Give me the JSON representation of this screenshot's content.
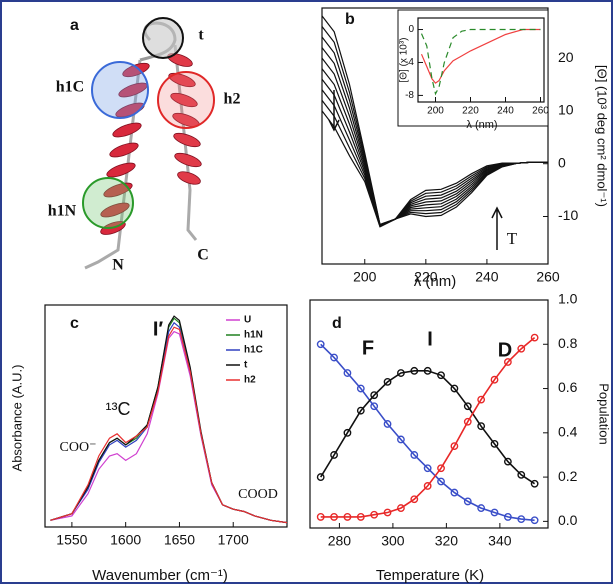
{
  "chart_data": [
    {
      "type": "structure",
      "panel": "a",
      "labels": [
        "t",
        "h1C",
        "h2",
        "h1N",
        "N",
        "C"
      ]
    },
    {
      "type": "line",
      "panel": "b",
      "xlabel": "λ (nm)",
      "ylabel": "[Θ] (10³ deg cm² dmol⁻¹)",
      "annotations": [
        "T"
      ],
      "x": [
        186,
        190,
        195,
        200,
        205,
        210,
        215,
        220,
        225,
        230,
        235,
        240,
        245,
        250,
        255,
        260
      ],
      "series": [
        {
          "color": "#111111",
          "values": [
            28,
            25,
            15,
            2,
            -11.5,
            -10.5,
            -9.5,
            -10,
            -9.8,
            -8.2,
            -5.5,
            -2.2,
            -0.6,
            0.1,
            0.3,
            0.3
          ]
        },
        {
          "color": "#111111",
          "values": [
            26,
            23,
            13.5,
            1.4,
            -11.55,
            -10.5,
            -9.2,
            -9.45,
            -9.25,
            -7.7,
            -5.1,
            -2,
            -0.52,
            0.1,
            0.3,
            0.3
          ]
        },
        {
          "color": "#111111",
          "values": [
            24,
            21,
            12,
            0.8,
            -11.6,
            -10.5,
            -8.9,
            -8.9,
            -8.7,
            -7.2,
            -4.7,
            -1.8,
            -0.44,
            0.1,
            0.3,
            0.3
          ]
        },
        {
          "color": "#111111",
          "values": [
            22,
            19,
            10.5,
            0.2,
            -11.65,
            -10.5,
            -8.6,
            -8.35,
            -8.15,
            -6.7,
            -4.3,
            -1.6,
            -0.36,
            0.1,
            0.3,
            0.3
          ]
        },
        {
          "color": "#111111",
          "values": [
            20,
            17,
            9,
            -0.4,
            -11.7,
            -10.5,
            -8.3,
            -7.8,
            -7.6,
            -6.2,
            -3.9,
            -1.4,
            -0.28,
            0.1,
            0.3,
            0.3
          ]
        },
        {
          "color": "#111111",
          "values": [
            18,
            15,
            7.5,
            -1,
            -11.75,
            -10.5,
            -8,
            -7.25,
            -7.05,
            -5.7,
            -3.5,
            -1.2,
            -0.2,
            0.1,
            0.3,
            0.3
          ]
        },
        {
          "color": "#111111",
          "values": [
            16,
            13,
            6,
            -1.6,
            -11.8,
            -10.5,
            -7.7,
            -6.7,
            -6.5,
            -5.2,
            -3.1,
            -1,
            -0.12,
            0.1,
            0.3,
            0.3
          ]
        },
        {
          "color": "#111111",
          "values": [
            14,
            11,
            4.5,
            -2.2,
            -11.85,
            -10.5,
            -7.4,
            -6.15,
            -5.95,
            -4.7,
            -2.7,
            -0.8,
            -0.04,
            0.1,
            0.3,
            0.3
          ]
        },
        {
          "color": "#111111",
          "values": [
            12,
            9,
            3,
            -2.8,
            -11.9,
            -10.5,
            -7.1,
            -5.6,
            -5.4,
            -4.2,
            -2.3,
            -0.6,
            0.04,
            0.1,
            0.3,
            0.3
          ]
        },
        {
          "color": "#111111",
          "values": [
            10,
            7,
            1.5,
            -3.4,
            -11.95,
            -10.5,
            -6.8,
            -5.05,
            -4.85,
            -3.7,
            -1.9,
            -0.4,
            0.12,
            0.1,
            0.3,
            0.3
          ]
        }
      ],
      "xlim": [
        186,
        260
      ],
      "ylim": [
        -19,
        29.5
      ],
      "xticks": [
        200,
        220,
        240,
        260
      ],
      "yticks": [
        -10,
        0,
        10,
        20
      ],
      "inset": {
        "type": "line",
        "xlabel": "λ (nm)",
        "ylabel": "[Θ] (x 10³)",
        "x": [
          192,
          195,
          198,
          200,
          202,
          205,
          210,
          215,
          220,
          230,
          240,
          250,
          260
        ],
        "series": [
          {
            "color": "#f04040",
            "style": "solid",
            "values": [
              -3,
              -4.5,
              -6,
              -6.5,
              -6.2,
              -5,
              -3.8,
              -3.2,
              -2.6,
              -1.6,
              -0.6,
              0,
              0
            ]
          },
          {
            "color": "#2a8a2a",
            "style": "dashed",
            "values": [
              -0.5,
              -2,
              -6,
              -7.8,
              -7,
              -4,
              -1,
              -0.2,
              0,
              0,
              0,
              0,
              0
            ]
          }
        ],
        "xlim": [
          190,
          262
        ],
        "ylim": [
          -8.8,
          1.4
        ],
        "xticks": [
          200,
          220,
          240,
          260
        ],
        "yticks": [
          -8,
          -4,
          0
        ]
      }
    },
    {
      "type": "line",
      "panel": "c",
      "xlabel": "Wavenumber (cm⁻¹)",
      "ylabel": "Absorbance (A.U.)",
      "annotations": [
        "I′",
        "¹³C",
        "COO⁻",
        "COOD"
      ],
      "x": [
        1530,
        1550,
        1565,
        1575,
        1585,
        1592,
        1600,
        1610,
        1620,
        1630,
        1640,
        1645,
        1650,
        1660,
        1670,
        1680,
        1690,
        1700,
        1710,
        1720,
        1735,
        1750
      ],
      "series": [
        {
          "name": "U",
          "color": "#d040d0",
          "values": [
            0.03,
            0.05,
            0.15,
            0.26,
            0.32,
            0.33,
            0.3,
            0.33,
            0.42,
            0.6,
            0.85,
            0.88,
            0.87,
            0.68,
            0.41,
            0.19,
            0.1,
            0.08,
            0.07,
            0.05,
            0.03,
            0.02
          ]
        },
        {
          "name": "h1N",
          "color": "#208020",
          "values": [
            0.03,
            0.06,
            0.18,
            0.3,
            0.38,
            0.4,
            0.37,
            0.4,
            0.46,
            0.63,
            0.9,
            0.94,
            0.92,
            0.71,
            0.42,
            0.2,
            0.1,
            0.08,
            0.07,
            0.05,
            0.03,
            0.02
          ]
        },
        {
          "name": "h1C",
          "color": "#3040c0",
          "values": [
            0.03,
            0.06,
            0.17,
            0.29,
            0.37,
            0.39,
            0.36,
            0.39,
            0.45,
            0.62,
            0.88,
            0.92,
            0.9,
            0.7,
            0.42,
            0.2,
            0.1,
            0.08,
            0.07,
            0.05,
            0.03,
            0.02
          ]
        },
        {
          "name": "t",
          "color": "#111111",
          "values": [
            0.03,
            0.06,
            0.18,
            0.3,
            0.38,
            0.4,
            0.37,
            0.41,
            0.46,
            0.63,
            0.91,
            0.95,
            0.93,
            0.72,
            0.43,
            0.2,
            0.1,
            0.08,
            0.07,
            0.05,
            0.03,
            0.02
          ]
        },
        {
          "name": "h2",
          "color": "#e83030",
          "values": [
            0.03,
            0.06,
            0.19,
            0.32,
            0.4,
            0.42,
            0.38,
            0.41,
            0.45,
            0.61,
            0.86,
            0.9,
            0.89,
            0.7,
            0.42,
            0.2,
            0.1,
            0.08,
            0.07,
            0.05,
            0.03,
            0.02
          ]
        }
      ],
      "xlim": [
        1525,
        1750
      ],
      "ylim": [
        0,
        1.0
      ],
      "xticks": [
        1550,
        1600,
        1650,
        1700
      ]
    },
    {
      "type": "line",
      "panel": "d",
      "markers": true,
      "xlabel": "Temperature (K)",
      "ylabel": "Population",
      "x": [
        273,
        278,
        283,
        288,
        293,
        298,
        303,
        308,
        313,
        318,
        323,
        328,
        333,
        338,
        343,
        348,
        353
      ],
      "series": [
        {
          "name": "F",
          "color": "#3a4ec8",
          "values": [
            0.8,
            0.74,
            0.67,
            0.6,
            0.52,
            0.44,
            0.37,
            0.3,
            0.24,
            0.18,
            0.13,
            0.09,
            0.06,
            0.04,
            0.02,
            0.01,
            0.005
          ]
        },
        {
          "name": "I",
          "color": "#111111",
          "values": [
            0.2,
            0.3,
            0.4,
            0.5,
            0.57,
            0.63,
            0.67,
            0.68,
            0.68,
            0.66,
            0.6,
            0.52,
            0.43,
            0.35,
            0.27,
            0.21,
            0.17
          ]
        },
        {
          "name": "D",
          "color": "#e82828",
          "values": [
            0.02,
            0.02,
            0.02,
            0.02,
            0.03,
            0.04,
            0.06,
            0.1,
            0.16,
            0.24,
            0.34,
            0.45,
            0.55,
            0.64,
            0.72,
            0.78,
            0.83
          ]
        }
      ],
      "xlim": [
        269,
        358
      ],
      "ylim": [
        -0.03,
        1.0
      ],
      "xticks": [
        280,
        300,
        320,
        340
      ],
      "yticks": [
        {
          "value": 0,
          "label": "0.0"
        },
        0.2,
        0.4,
        0.6,
        0.8,
        {
          "value": 1,
          "label": "1.0"
        }
      ]
    }
  ]
}
